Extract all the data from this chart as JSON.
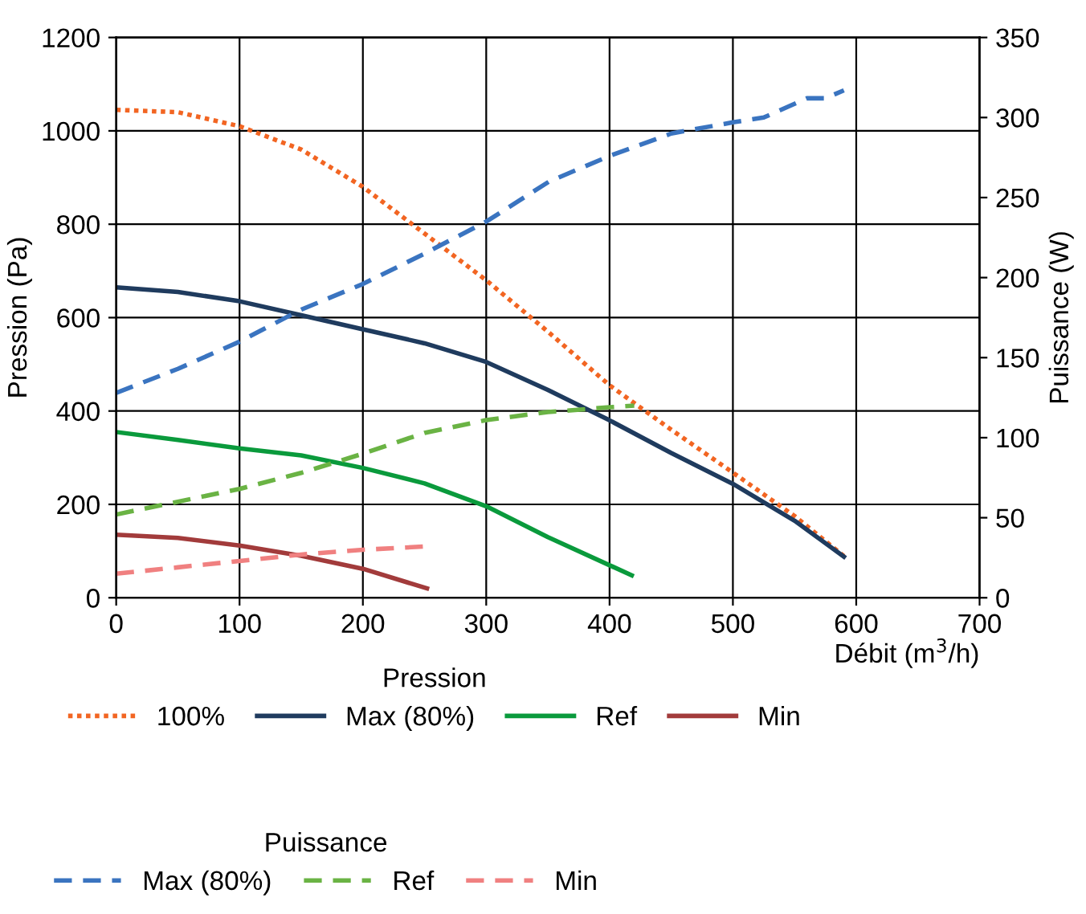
{
  "chart_data": {
    "type": "line",
    "xlabel": "Débit (m$^{3}$/h)",
    "ylabel": "Pression (Pa)",
    "y2label": "Puissance (W)",
    "xlim": [
      0,
      700
    ],
    "xticks": [
      0,
      100,
      200,
      300,
      400,
      500,
      600,
      700
    ],
    "ylim": [
      0,
      1200
    ],
    "yticks": [
      0,
      200,
      400,
      600,
      800,
      1000,
      1200
    ],
    "y2lim": [
      0,
      350
    ],
    "y2ticks": [
      0,
      50,
      100,
      150,
      200,
      250,
      300,
      350
    ],
    "grid": true,
    "legend": "bottom",
    "marker": "none",
    "annotations": [
      "Pression",
      "Puissance"
    ],
    "series": [
      {
        "name": "100%",
        "color": "#f26522",
        "line_style": "dotted",
        "x": [
          0,
          50,
          100,
          150,
          200,
          250,
          300,
          350,
          400,
          450,
          500,
          550,
          590
        ],
        "values": [
          1045,
          1040,
          1010,
          960,
          880,
          780,
          680,
          570,
          455,
          360,
          268,
          175,
          89
        ]
      },
      {
        "name": "Max (80%)",
        "color": "#1f3b5e",
        "line_style": "solid",
        "x": [
          0,
          50,
          100,
          150,
          200,
          250,
          300,
          350,
          400,
          450,
          500,
          550,
          590
        ],
        "values": [
          665,
          655,
          635,
          605,
          575,
          545,
          505,
          445,
          380,
          310,
          244,
          165,
          88
        ]
      },
      {
        "name": "Ref",
        "color": "#0a9a3c",
        "line_style": "solid",
        "x": [
          0,
          50,
          100,
          150,
          200,
          250,
          300,
          350,
          418
        ],
        "values": [
          355,
          338,
          320,
          305,
          278,
          245,
          196,
          130,
          48
        ]
      },
      {
        "name": "Min",
        "color": "#a23b3b",
        "line_style": "solid",
        "x": [
          0,
          50,
          100,
          150,
          200,
          252
        ],
        "values": [
          135,
          128,
          112,
          90,
          62,
          20
        ]
      },
      {
        "name": "Max (80%)",
        "color": "#3a74c0",
        "line_style": "dashed",
        "axis": "y2",
        "x": [
          0,
          50,
          100,
          150,
          200,
          250,
          300,
          351,
          400,
          450,
          500,
          525,
          560,
          575,
          590
        ],
        "values": [
          128,
          143,
          160,
          180,
          196,
          215,
          235,
          260,
          276,
          290,
          297,
          300,
          312,
          312,
          317
        ]
      },
      {
        "name": "Ref",
        "color": "#6ab344",
        "line_style": "dashed",
        "axis": "y2",
        "x": [
          0,
          50,
          100,
          150,
          200,
          250,
          300,
          350,
          400,
          420
        ],
        "values": [
          52,
          60,
          68,
          78,
          90,
          103,
          111,
          116,
          119,
          120
        ]
      },
      {
        "name": "Min",
        "color": "#f08080",
        "line_style": "dashed",
        "axis": "y2",
        "x": [
          0,
          50,
          100,
          150,
          200,
          250
        ],
        "values": [
          15,
          19,
          23,
          27,
          30,
          32
        ]
      }
    ]
  }
}
